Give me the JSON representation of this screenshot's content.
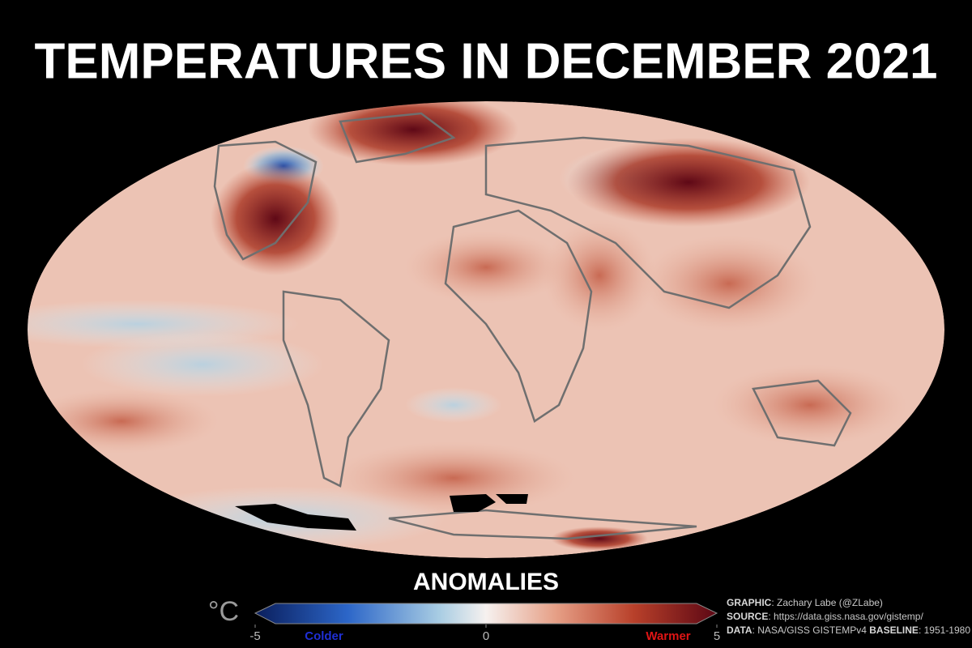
{
  "title": "TEMPERATURES IN DECEMBER 2021",
  "legend": {
    "label": "ANOMALIES",
    "unit": "°C",
    "range": [
      -5,
      5
    ],
    "ticks": [
      -5,
      0,
      5
    ],
    "colder": "Colder",
    "warmer": "Warmer"
  },
  "credits": [
    [
      {
        "key": "GRAPHIC",
        "text": ": Zachary Labe (@ZLabe)"
      }
    ],
    [
      {
        "key": "SOURCE",
        "text": ": https://data.giss.nasa.gov/gistemp/"
      }
    ],
    [
      {
        "key": "DATA",
        "text": ": NASA/GISS GISTEMPv4 "
      },
      {
        "key": "BASELINE",
        "text": ": 1951-1980"
      }
    ]
  ]
}
